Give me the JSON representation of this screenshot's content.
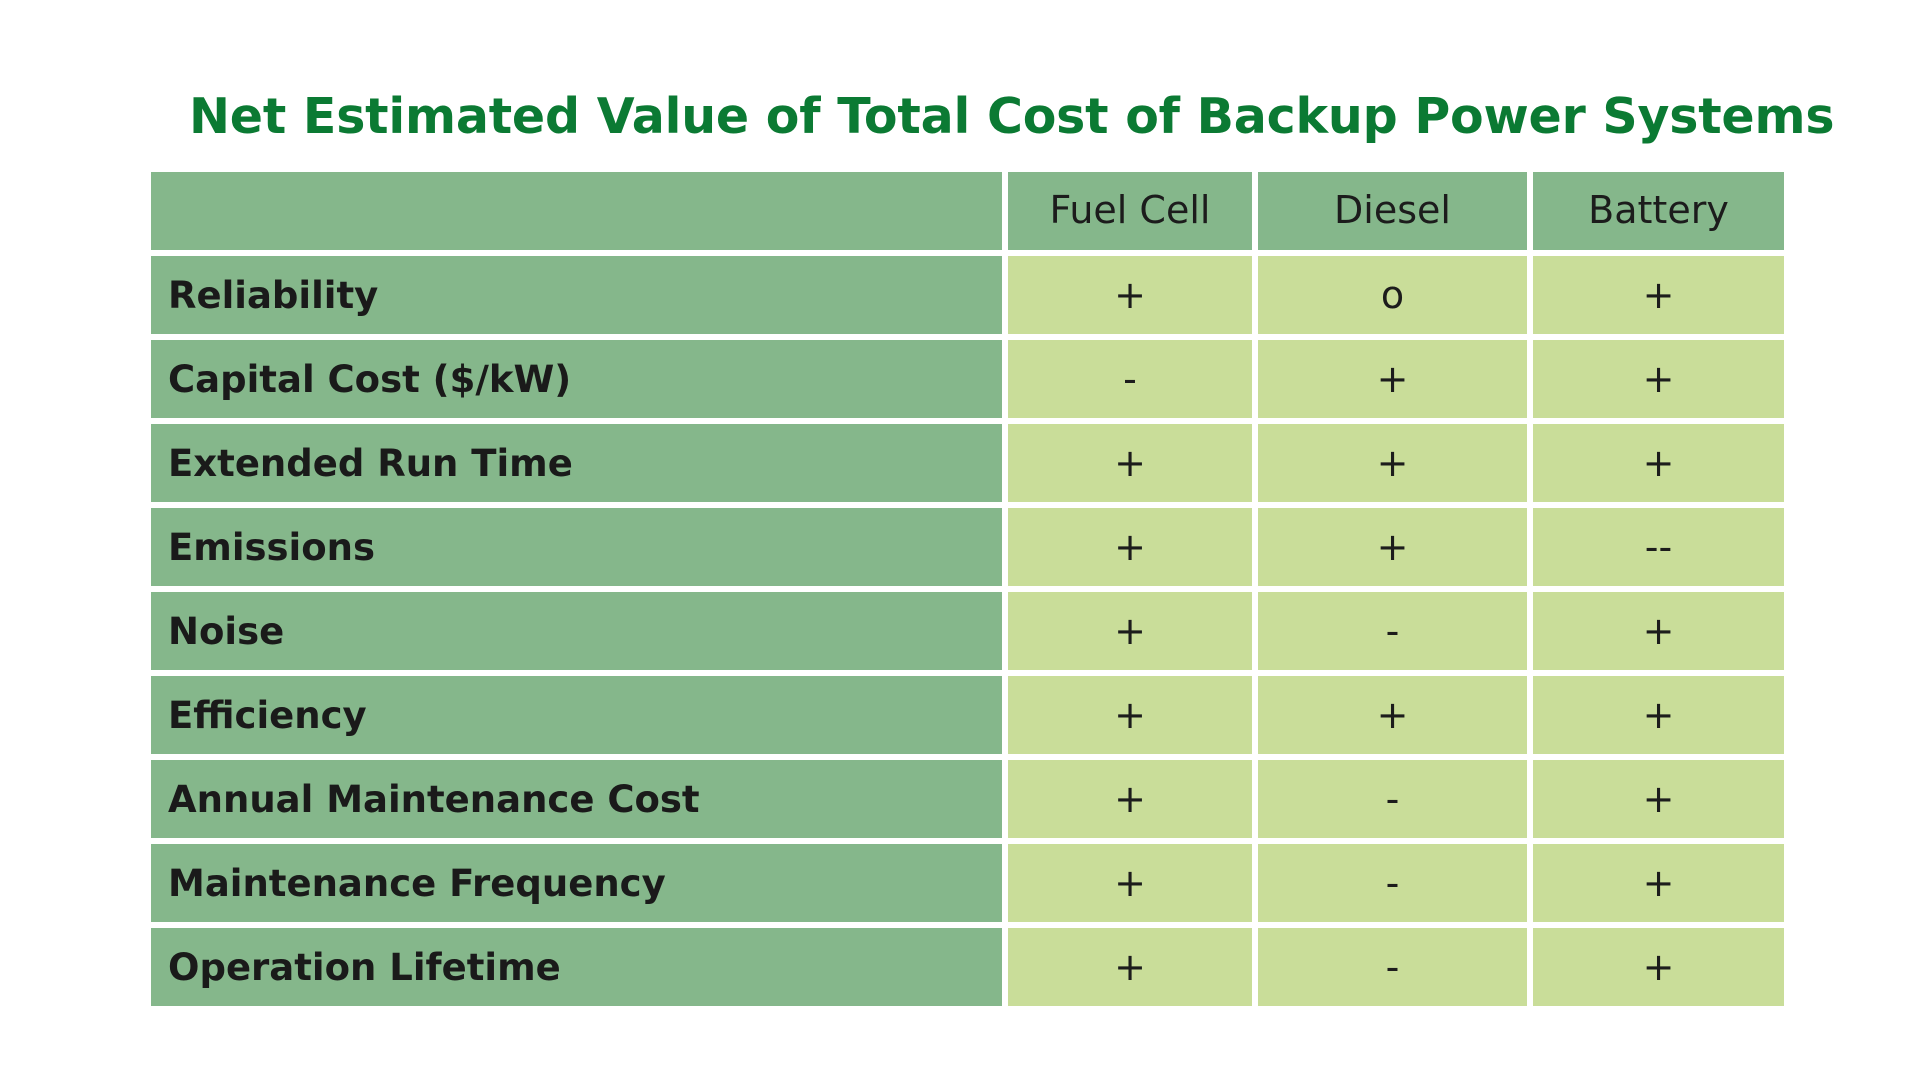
{
  "title": "Net Estimated Value of Total Cost of Backup Power Systems",
  "columns": [
    "",
    "Fuel Cell",
    "Diesel",
    "Battery"
  ],
  "rows": [
    {
      "label": "Reliability",
      "values": [
        "+",
        "o",
        "+"
      ]
    },
    {
      "label": "Capital Cost ($/kW)",
      "values": [
        "-",
        "+",
        "+"
      ]
    },
    {
      "label": "Extended Run Time",
      "values": [
        "+",
        "+",
        "+"
      ]
    },
    {
      "label": "Emissions",
      "values": [
        "+",
        "+",
        "--"
      ]
    },
    {
      "label": "Noise",
      "values": [
        "+",
        "-",
        "+"
      ]
    },
    {
      "label": "Efficiency",
      "values": [
        "+",
        "+",
        "+"
      ]
    },
    {
      "label": "Annual Maintenance Cost",
      "values": [
        "+",
        "-",
        "+"
      ]
    },
    {
      "label": "Maintenance Frequency",
      "values": [
        "+",
        "-",
        "+"
      ]
    },
    {
      "label": "Operation Lifetime",
      "values": [
        "+",
        "-",
        "+"
      ]
    }
  ],
  "colors": {
    "title": "#0b7a33",
    "header_fill": "#85b78b",
    "label_fill": "#85b78b",
    "value_fill": "#c9dd99"
  }
}
